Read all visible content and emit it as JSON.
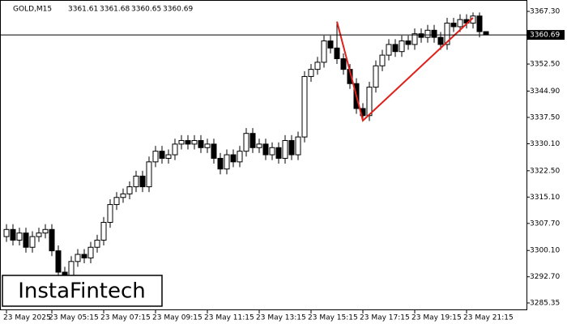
{
  "chart_data": {
    "type": "candlestick",
    "title": "GOLD,M15",
    "header_values": [
      3361.61,
      3361.68,
      3360.65,
      3360.69
    ],
    "brand": "InstaFintech",
    "categories": [
      "23 May 2025",
      null,
      null,
      null,
      null,
      null,
      null,
      "23 May 05:15",
      null,
      null,
      null,
      null,
      null,
      null,
      null,
      "23 May 07:15",
      null,
      null,
      null,
      null,
      null,
      null,
      null,
      "23 May 09:15",
      null,
      null,
      null,
      null,
      null,
      null,
      null,
      "23 May 11:15",
      null,
      null,
      null,
      null,
      null,
      null,
      null,
      "23 May 13:15",
      null,
      null,
      null,
      null,
      null,
      null,
      null,
      "23 May 15:15",
      null,
      null,
      null,
      null,
      null,
      null,
      null,
      "23 May 17:15",
      null,
      null,
      null,
      null,
      null,
      null,
      null,
      "23 May 19:15",
      null,
      null,
      null,
      null,
      null,
      null,
      null,
      "23 May 21:15",
      null,
      null,
      null
    ],
    "open": [
      3304,
      3306,
      3303,
      3305,
      3301,
      3304,
      3305,
      3306,
      3300,
      3294,
      3293,
      3297,
      3299,
      3298,
      3301,
      3303,
      3308,
      3313,
      3315,
      3316,
      3318,
      3321,
      3318,
      3325,
      3328,
      3326,
      3327,
      3330,
      3331,
      3330,
      3331,
      3329,
      3330,
      3326,
      3323,
      3327,
      3325,
      3328,
      3333,
      3329,
      3330,
      3327,
      3329,
      3326,
      3331,
      3327,
      3332,
      3349,
      3351,
      3353,
      3359,
      3357,
      3354,
      3351,
      3347,
      3340,
      3338,
      3346,
      3352,
      3355,
      3358,
      3356,
      3359,
      3358,
      3361,
      3360,
      3362,
      3360,
      3358,
      3364,
      3363,
      3365,
      3364,
      3366,
      3361.61
    ],
    "high": [
      3307.5,
      3307.5,
      3306.5,
      3306.5,
      3305.5,
      3306.5,
      3307.5,
      3307.5,
      3301.5,
      3295.5,
      3298.5,
      3300.5,
      3300.5,
      3302.5,
      3304.5,
      3309.5,
      3314.5,
      3316.5,
      3317.5,
      3319.5,
      3322.5,
      3322.5,
      3326.5,
      3329.5,
      3329.5,
      3328.5,
      3331.5,
      3332.5,
      3332.5,
      3332.5,
      3332.5,
      3331.5,
      3331.5,
      3327.5,
      3328.5,
      3328.5,
      3329.5,
      3334.5,
      3334.5,
      3331.5,
      3331.5,
      3330.5,
      3330.5,
      3332.5,
      3332.5,
      3333.5,
      3350.5,
      3352.5,
      3354.5,
      3360.5,
      3360.5,
      3364.4,
      3355.5,
      3352.5,
      3348.5,
      3341.5,
      3347.5,
      3353.5,
      3356.5,
      3359.5,
      3359.5,
      3360.5,
      3360.5,
      3362.5,
      3362.5,
      3363.5,
      3363.5,
      3361.5,
      3365.5,
      3365.5,
      3366.5,
      3366.5,
      3367,
      3367,
      3361.68
    ],
    "low": [
      3302.5,
      3301.5,
      3301.5,
      3299.5,
      3299.5,
      3302.5,
      3303.5,
      3298.5,
      3292.5,
      3291.5,
      3291.5,
      3295.5,
      3296.5,
      3296.5,
      3299.5,
      3301.5,
      3306.5,
      3311.5,
      3313.5,
      3314.5,
      3316.5,
      3316.5,
      3316.5,
      3323.5,
      3324.5,
      3324.5,
      3325.5,
      3328.5,
      3328.5,
      3328.5,
      3327.5,
      3327.5,
      3324.5,
      3321.5,
      3321.5,
      3323.5,
      3323.5,
      3326.5,
      3327.5,
      3327.5,
      3325.5,
      3325.5,
      3324.5,
      3324.5,
      3325.5,
      3325.5,
      3330.5,
      3347.5,
      3349.5,
      3351.5,
      3355.5,
      3352.5,
      3349.5,
      3345.5,
      3338.5,
      3336.6,
      3336.5,
      3344.5,
      3350.5,
      3353.5,
      3354.5,
      3354.5,
      3356.5,
      3356.5,
      3358.5,
      3358.5,
      3358.5,
      3356.5,
      3356.5,
      3361.5,
      3361.5,
      3362.5,
      3362.5,
      3360,
      3360.65
    ],
    "close": [
      3306,
      3303,
      3305,
      3301,
      3304,
      3305,
      3306,
      3300,
      3294,
      3293,
      3297,
      3299,
      3298,
      3301,
      3303,
      3308,
      3313,
      3315,
      3316,
      3318,
      3321,
      3318,
      3325,
      3328,
      3326,
      3327,
      3330,
      3331,
      3330,
      3331,
      3329,
      3330,
      3326,
      3323,
      3327,
      3325,
      3328,
      3333,
      3329,
      3330,
      3327,
      3329,
      3326,
      3331,
      3327,
      3332,
      3349,
      3351,
      3353,
      3359,
      3357,
      3354,
      3351,
      3347,
      3340,
      3338,
      3346,
      3352,
      3355,
      3358,
      3356,
      3359,
      3358,
      3361,
      3360,
      3362,
      3360,
      3358,
      3364,
      3363,
      3365,
      3364,
      3366,
      3361.61,
      3360.69
    ],
    "current_price": {
      "value": 3360.69,
      "label": "3360.69"
    },
    "pattern": {
      "color": "#e0201b",
      "x": [
        51,
        55,
        72
      ],
      "values": [
        3364.4,
        3336.6,
        3365.5
      ]
    },
    "ylim": [
      3283.3,
      3370.5
    ],
    "yticks": [
      {
        "value": 3367.3,
        "label": "3367.30"
      },
      {
        "value": 3352.5,
        "label": "3352.50"
      },
      {
        "value": 3344.9,
        "label": "3344.90"
      },
      {
        "value": 3337.5,
        "label": "3337.50"
      },
      {
        "value": 3330.1,
        "label": "3330.10"
      },
      {
        "value": 3322.5,
        "label": "3322.50"
      },
      {
        "value": 3315.1,
        "label": "3315.10"
      },
      {
        "value": 3307.7,
        "label": "3307.70"
      },
      {
        "value": 3300.1,
        "label": "3300.10"
      },
      {
        "value": 3292.7,
        "label": "3292.70"
      },
      {
        "value": 3285.35,
        "label": "3285.35"
      }
    ]
  }
}
